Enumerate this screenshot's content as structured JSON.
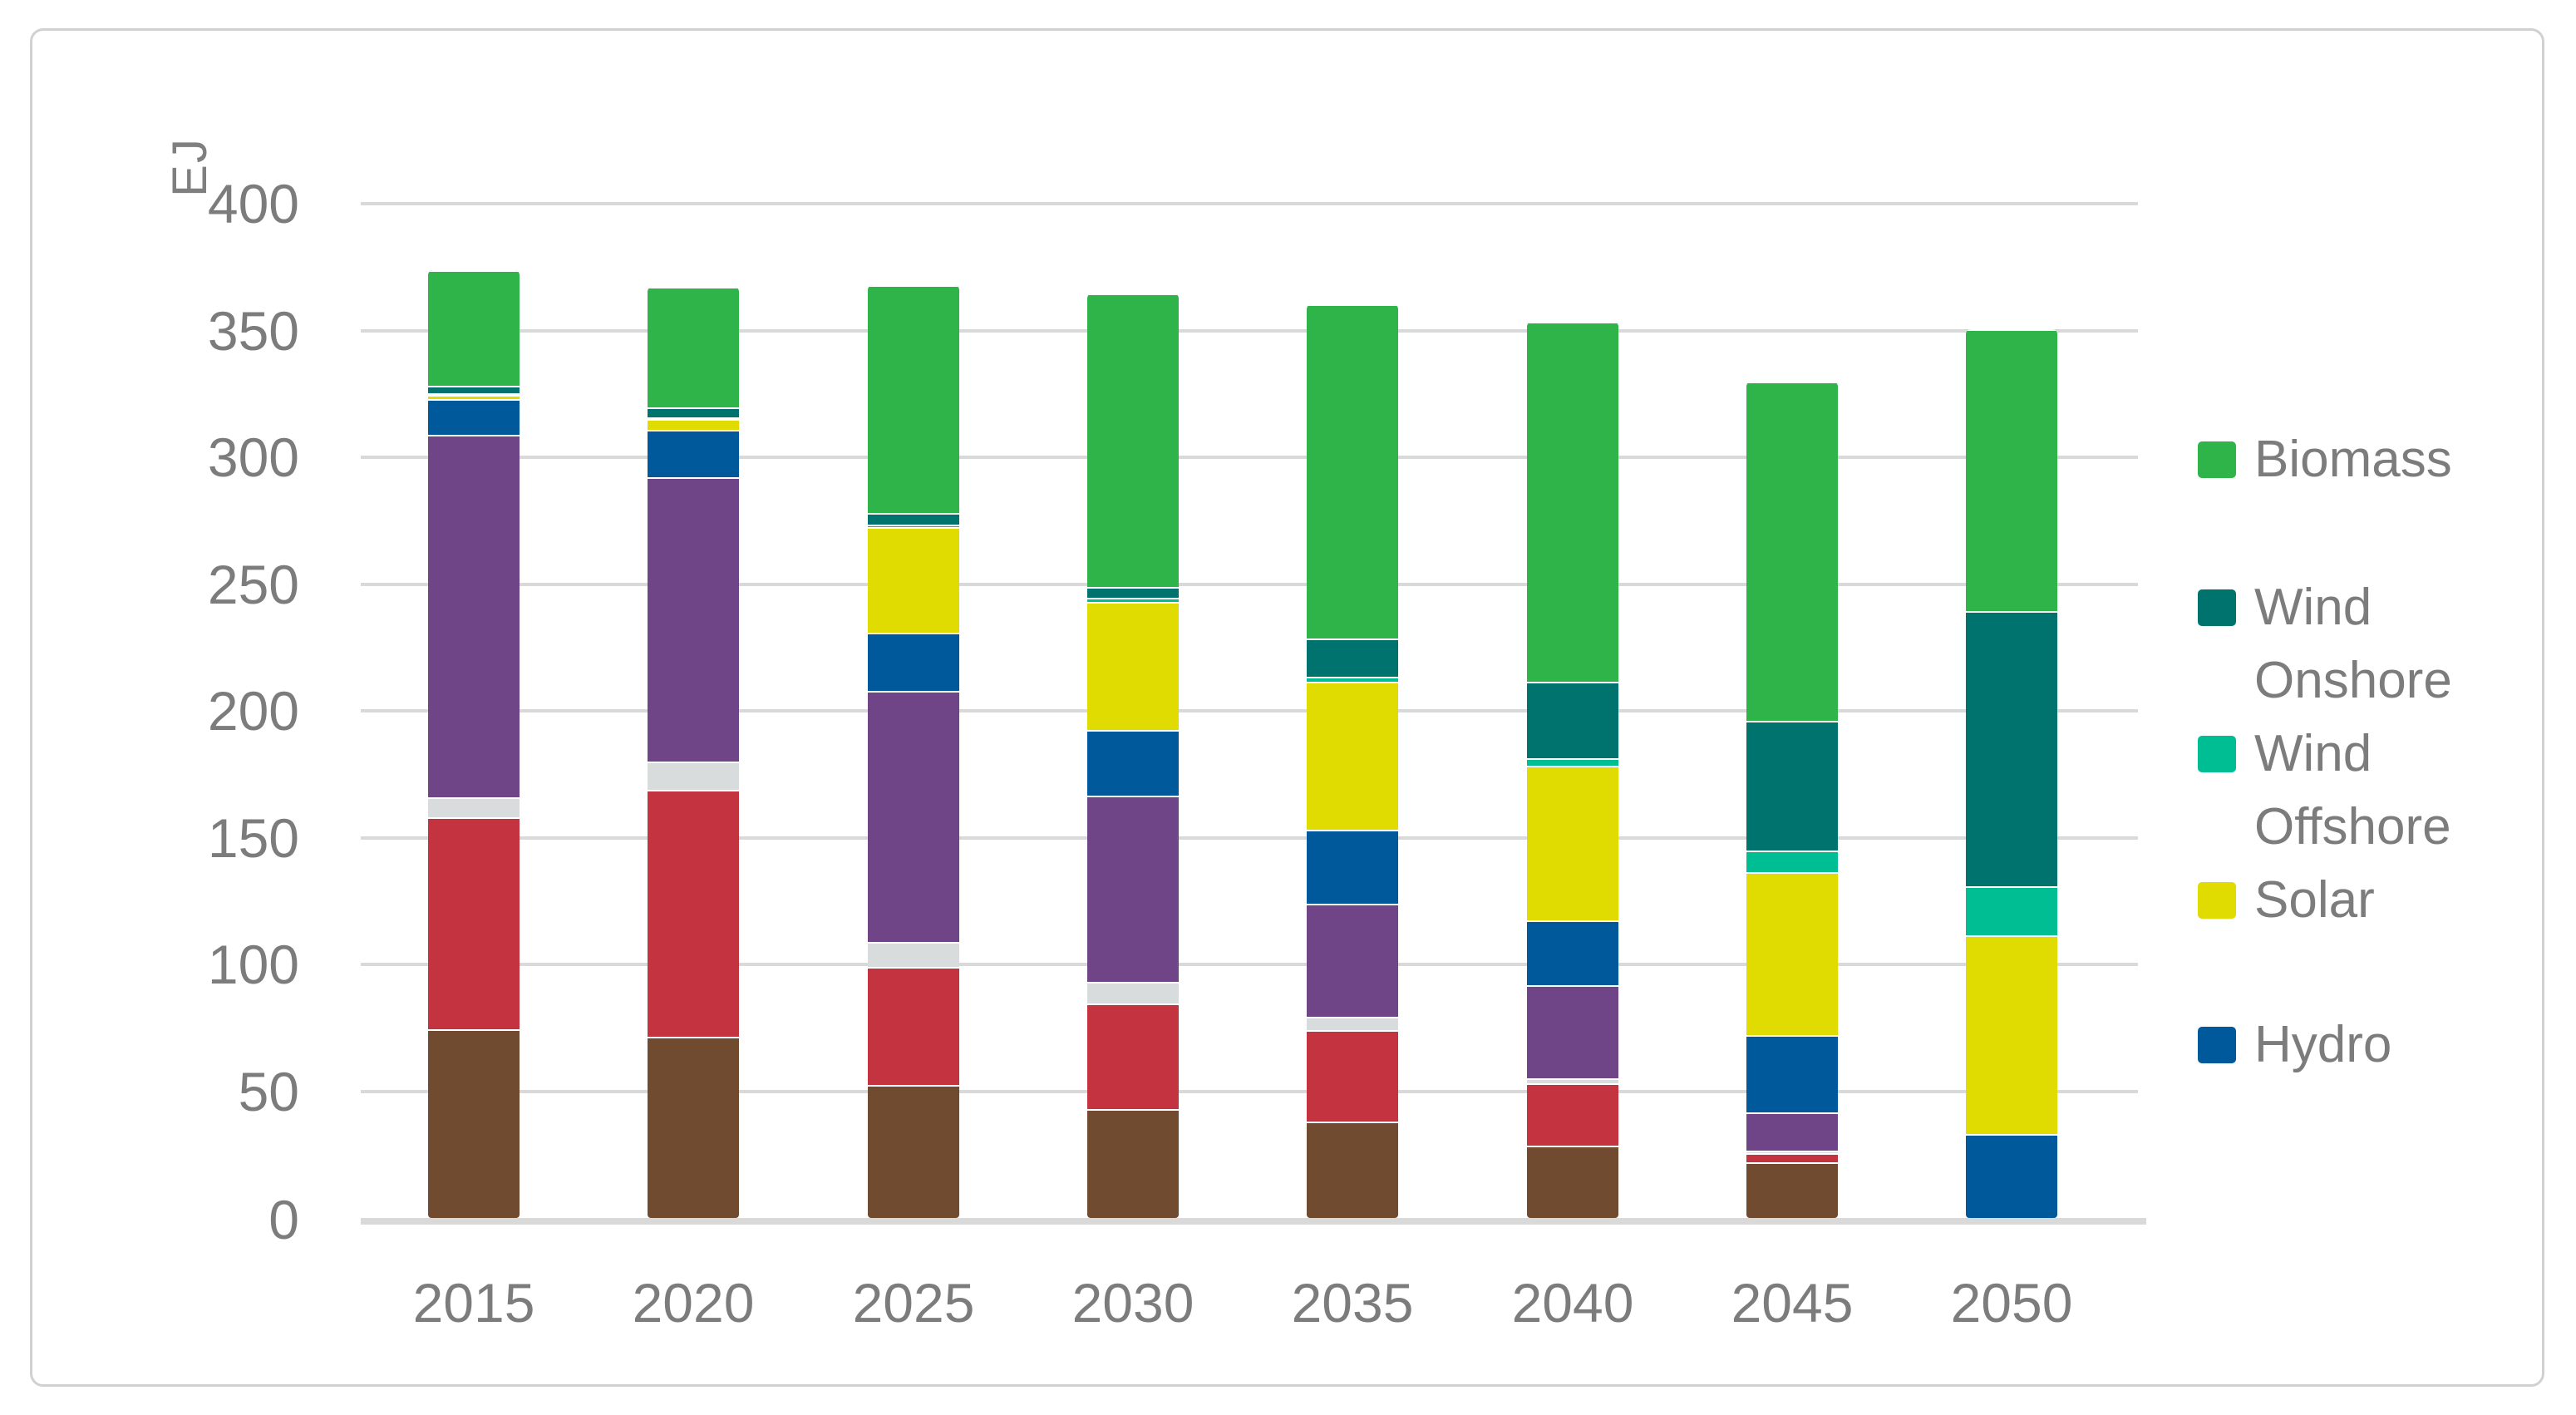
{
  "chart_data": {
    "type": "bar",
    "stacked": true,
    "title": "",
    "categories": [
      "2015",
      "2020",
      "2025",
      "2030",
      "2035",
      "2040",
      "2045",
      "2050"
    ],
    "series": [
      {
        "id": "unlabeled-brown-segment",
        "legend_label": null,
        "color": "#704B2F",
        "values": [
          74.5,
          71.5,
          52.5,
          43.0,
          38.0,
          28.5,
          22.0,
          0
        ]
      },
      {
        "id": "unlabeled-red-segment",
        "legend_label": null,
        "color": "#C43440",
        "values": [
          83.5,
          97.5,
          46.5,
          41.5,
          36.0,
          24.5,
          3.5,
          0
        ]
      },
      {
        "id": "unlabeled-gray-segment",
        "legend_label": null,
        "color": "#D9DCDD",
        "values": [
          8.0,
          11.0,
          10.0,
          8.5,
          5.5,
          2.0,
          1.0,
          0
        ]
      },
      {
        "id": "unlabeled-purple-segment",
        "legend_label": null,
        "color": "#6F4588",
        "values": [
          143.0,
          112.0,
          99.0,
          73.5,
          44.5,
          37.0,
          15.0,
          0
        ]
      },
      {
        "id": "hydro",
        "legend_label": "Hydro",
        "color": "#00599B",
        "values": [
          14.0,
          19.0,
          23.0,
          26.0,
          29.0,
          25.5,
          30.5,
          33.0
        ]
      },
      {
        "id": "solar",
        "legend_label": "Solar",
        "color": "#E0DB00",
        "values": [
          1.5,
          4.0,
          41.5,
          50.5,
          58.5,
          61.0,
          64.5,
          78.5
        ]
      },
      {
        "id": "wind-offshore",
        "legend_label": "Wind Offshore",
        "color": "#00BE93",
        "values": [
          0.5,
          0.5,
          1.0,
          1.5,
          2.0,
          3.0,
          8.5,
          19.5
        ]
      },
      {
        "id": "wind-onshore",
        "legend_label": "Wind Onshore",
        "color": "#00736E",
        "values": [
          3.0,
          4.0,
          4.5,
          4.5,
          15.0,
          30.0,
          51.0,
          108.5
        ]
      },
      {
        "id": "biomass",
        "legend_label": "Biomass",
        "color": "#2FB44A",
        "values": [
          45.5,
          47.5,
          90.0,
          115.5,
          132.0,
          142.0,
          134.0,
          111.0
        ]
      }
    ],
    "totals": [
      373.5,
      367.0,
      368.0,
      364.5,
      360.5,
      353.5,
      330.0,
      350.5
    ],
    "xlabel": "",
    "ylabel": "EJ",
    "y_axis": {
      "label": "EJ",
      "min": 0,
      "max": 400,
      "tick_step": 50,
      "ticks": [
        400,
        350,
        300,
        250,
        200,
        150,
        100,
        50,
        0
      ]
    },
    "grid": true,
    "legend": {
      "position": "right",
      "items": [
        {
          "series_id": "biomass",
          "color": "#2FB44A",
          "lines": [
            "Biomass"
          ]
        },
        {
          "series_id": "wind-onshore",
          "color": "#00736E",
          "lines": [
            "Wind",
            "Onshore"
          ]
        },
        {
          "series_id": "wind-offshore",
          "color": "#00BE93",
          "lines": [
            "Wind",
            "Offshore"
          ]
        },
        {
          "series_id": "solar",
          "color": "#E0DB00",
          "lines": [
            "Solar"
          ]
        },
        {
          "series_id": "hydro",
          "color": "#00599B",
          "lines": [
            "Hydro"
          ]
        }
      ]
    }
  },
  "colors": {
    "gridline": "#D9D9D9",
    "axis_line": "#D9D9D9",
    "tick_text": "#7C7C7C",
    "legend_text": "#7C7C7C",
    "frame_border": "#D2D0D0",
    "background": "#FFFFFF"
  }
}
